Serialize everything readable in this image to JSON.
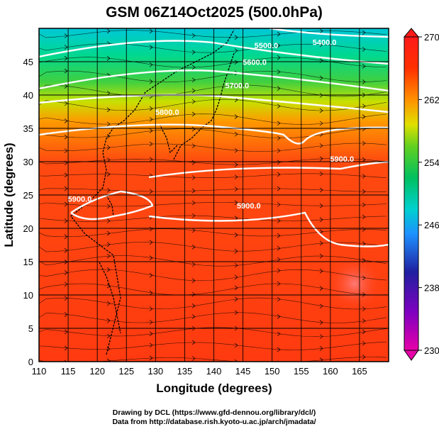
{
  "chart_data": {
    "type": "heatmap",
    "title": "GSM 06Z14Oct2025 (500.0hPa)",
    "xlabel": "Longitude (degrees)",
    "ylabel": "Latitude  (degrees)",
    "xlim": [
      110,
      170
    ],
    "ylim": [
      0,
      50
    ],
    "x_ticks": [
      110,
      115,
      120,
      125,
      130,
      135,
      140,
      145,
      150,
      155,
      160,
      165
    ],
    "y_ticks": [
      0,
      5,
      10,
      15,
      20,
      25,
      30,
      35,
      40,
      45
    ],
    "grid": true,
    "colorbar": {
      "ticks": [
        230,
        238,
        246,
        254,
        262,
        270
      ],
      "range": [
        230,
        270
      ],
      "position": "right",
      "colors": [
        "#e600a8",
        "#2020a0",
        "#1e90ff",
        "#00d0d0",
        "#00c060",
        "#60d020",
        "#e0e000",
        "#ff9000",
        "#ff3000",
        "#ff1a1a"
      ]
    },
    "contours": [
      {
        "label": "5400.0",
        "lat_at_165": 48,
        "label_lon": 159,
        "label_lat": 47.5
      },
      {
        "label": "5500.0",
        "label_lon": 149,
        "label_lat": 47.0
      },
      {
        "label": "5600.0",
        "label_lon": 147,
        "label_lat": 44.5
      },
      {
        "label": "5700.0",
        "label_lon": 144,
        "label_lat": 41.0
      },
      {
        "label": "5800.0",
        "label_lon": 132,
        "label_lat": 37.0
      },
      {
        "label": "5900.0",
        "label_lon": 162,
        "label_lat": 30.0
      },
      {
        "label": "5900.0",
        "label_lon": 146,
        "label_lat": 23.0
      },
      {
        "label": "5900.0",
        "label_lon": 117,
        "label_lat": 24.0
      }
    ],
    "credits": [
      "Drawing by DCL (https://www.gfd-dennou.org/library/dcl/)",
      "Data from http://database.rish.kyoto-u.ac.jp/arch/jmadata/"
    ]
  }
}
